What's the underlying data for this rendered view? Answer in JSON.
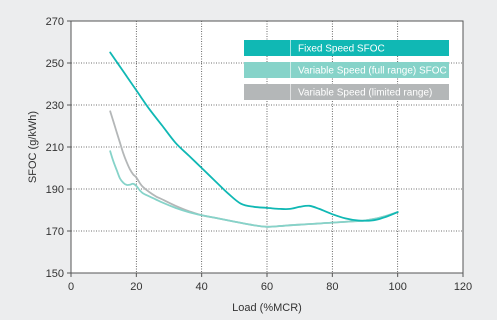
{
  "chart_data": {
    "type": "line",
    "title": "",
    "xlabel": "Load (%MCR)",
    "ylabel": "SFOC (g/kWh)",
    "xlim": [
      0,
      120
    ],
    "ylim": [
      150,
      270
    ],
    "xticks": [
      0,
      20,
      40,
      60,
      80,
      100,
      120
    ],
    "yticks": [
      150,
      170,
      190,
      210,
      230,
      250,
      270
    ],
    "grid": true,
    "legend_position": "top-right",
    "series": [
      {
        "name": "Fixed Speed SFOC",
        "color": "#10b8b4",
        "x": [
          12,
          16,
          20,
          24,
          28,
          32,
          36,
          40,
          44,
          48,
          52,
          56,
          60,
          64,
          67,
          70,
          73,
          76,
          80,
          84,
          88,
          92,
          96,
          100
        ],
        "y": [
          255,
          246,
          237,
          228,
          220,
          212,
          206,
          200,
          194,
          188,
          183,
          181.5,
          181,
          180.5,
          180.5,
          181.5,
          182,
          180.5,
          178,
          176,
          175,
          175,
          176.5,
          179
        ]
      },
      {
        "name": "Variable Speed (full range) SFOC",
        "color": "#86d3c9",
        "x": [
          12,
          13,
          14,
          15,
          16,
          17,
          18,
          19,
          20,
          21,
          22,
          24,
          26,
          28,
          32,
          36,
          40,
          45,
          50,
          55,
          60,
          65,
          70,
          75,
          80,
          85,
          90,
          95,
          100
        ],
        "y": [
          208,
          203,
          199,
          195,
          193,
          192,
          192,
          192.5,
          191.5,
          189.5,
          188,
          186.5,
          185,
          183.5,
          181,
          179,
          177.5,
          176,
          174.5,
          173,
          172,
          172.5,
          173,
          173.5,
          174,
          174.5,
          175,
          176.5,
          179
        ]
      },
      {
        "name": "Variable Speed (limited range)",
        "color": "#b4b7b8",
        "x": [
          12,
          13,
          14,
          15,
          16,
          17,
          18,
          19,
          20,
          21,
          22,
          24,
          26,
          28,
          32,
          36,
          40,
          45,
          50,
          55,
          60,
          65,
          70,
          75,
          80,
          85,
          90,
          95,
          100
        ],
        "y": [
          227,
          222,
          217,
          212,
          207,
          203,
          199.5,
          197,
          195.5,
          193,
          191,
          188.5,
          186.5,
          185,
          182,
          179.5,
          177.5,
          176,
          174.5,
          173,
          172,
          172.5,
          173,
          173.5,
          174,
          174.5,
          175,
          176.5,
          179
        ]
      }
    ]
  }
}
